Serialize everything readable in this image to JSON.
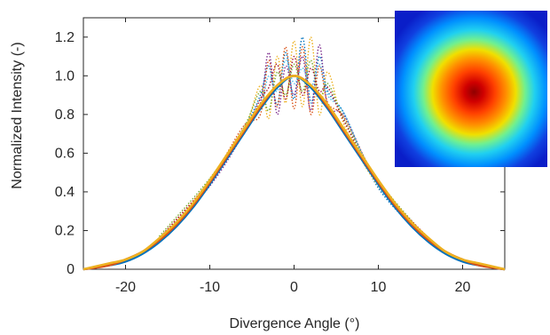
{
  "chart_data": {
    "type": "line",
    "xlabel": "Divergence Angle (°)",
    "ylabel": "Normalized Intensity (-)",
    "xlim": [
      -25,
      25
    ],
    "ylim": [
      0,
      1.3
    ],
    "xticks": [
      "-20",
      "-10",
      "0",
      "10",
      "20"
    ],
    "yticks": [
      "0",
      "0.2",
      "0.4",
      "0.6",
      "0.8",
      "1.0",
      "1.2"
    ],
    "grid": false,
    "legend": "none",
    "fit_curves": [
      {
        "style": "solid",
        "color": "#0072bd",
        "x": [
          -25,
          -22,
          -20,
          -18,
          -16,
          -14,
          -12,
          -10,
          -8,
          -6,
          -4,
          -2,
          0,
          2,
          4,
          6,
          8,
          10,
          12,
          14,
          16,
          18,
          20,
          22,
          25
        ],
        "values": [
          0.0,
          0.02,
          0.04,
          0.08,
          0.14,
          0.22,
          0.32,
          0.44,
          0.57,
          0.7,
          0.83,
          0.94,
          1.0,
          0.94,
          0.83,
          0.7,
          0.57,
          0.44,
          0.32,
          0.22,
          0.14,
          0.08,
          0.04,
          0.02,
          0.0
        ]
      },
      {
        "style": "solid",
        "color": "#d95319",
        "x": [
          -25,
          -22,
          -20,
          -18,
          -16,
          -14,
          -12,
          -10,
          -8,
          -6,
          -4,
          -2,
          0,
          2,
          4,
          6,
          8,
          10,
          12,
          14,
          16,
          18,
          20,
          22,
          25
        ],
        "values": [
          0.0,
          0.02,
          0.05,
          0.09,
          0.15,
          0.23,
          0.33,
          0.45,
          0.58,
          0.71,
          0.84,
          0.95,
          1.0,
          0.95,
          0.84,
          0.71,
          0.58,
          0.45,
          0.33,
          0.23,
          0.15,
          0.09,
          0.05,
          0.02,
          0.0
        ]
      },
      {
        "style": "solid",
        "color": "#edb120",
        "x": [
          -25,
          -22,
          -20,
          -18,
          -16,
          -14,
          -12,
          -10,
          -8,
          -6,
          -4,
          -2,
          0,
          2,
          4,
          6,
          8,
          10,
          12,
          14,
          16,
          18,
          20,
          22,
          25
        ],
        "values": [
          0.0,
          0.03,
          0.05,
          0.09,
          0.16,
          0.24,
          0.34,
          0.46,
          0.59,
          0.72,
          0.85,
          0.95,
          1.0,
          0.95,
          0.85,
          0.72,
          0.59,
          0.46,
          0.34,
          0.24,
          0.16,
          0.09,
          0.05,
          0.03,
          0.0
        ]
      }
    ],
    "measured_curves": [
      {
        "style": "dotted",
        "color": "#0072bd",
        "x": [
          -16,
          -10,
          -6,
          -4,
          -3,
          -2,
          -1,
          0,
          1,
          2,
          3,
          4,
          6,
          10,
          16
        ],
        "values": [
          0.15,
          0.44,
          0.72,
          0.9,
          1.05,
          0.85,
          1.12,
          0.88,
          1.2,
          0.86,
          1.1,
          0.92,
          0.8,
          0.42,
          0.14
        ]
      },
      {
        "style": "dotted",
        "color": "#d95319",
        "x": [
          -16,
          -10,
          -6,
          -4,
          -3,
          -2,
          -1,
          0,
          1,
          2,
          3,
          4,
          6,
          10,
          16
        ],
        "values": [
          0.16,
          0.46,
          0.74,
          0.8,
          1.08,
          0.84,
          1.15,
          0.83,
          1.15,
          0.8,
          1.05,
          0.86,
          0.78,
          0.45,
          0.15
        ]
      },
      {
        "style": "dotted",
        "color": "#edb120",
        "x": [
          -16,
          -10,
          -6,
          -4,
          -3,
          -2,
          -1,
          0,
          1,
          2,
          3,
          4,
          6,
          10,
          16
        ],
        "values": [
          0.14,
          0.45,
          0.71,
          0.95,
          0.78,
          1.1,
          0.86,
          1.18,
          0.84,
          1.2,
          0.8,
          1.02,
          0.74,
          0.43,
          0.16
        ]
      },
      {
        "style": "dotted",
        "color": "#7e2f8e",
        "x": [
          -16,
          -10,
          -6,
          -4,
          -3,
          -2,
          -1,
          0,
          1,
          2,
          3,
          4,
          6,
          10,
          16
        ],
        "values": [
          0.15,
          0.43,
          0.7,
          0.86,
          1.12,
          0.8,
          1.05,
          0.9,
          1.1,
          0.82,
          1.16,
          0.84,
          0.79,
          0.44,
          0.14
        ]
      },
      {
        "style": "dotted",
        "color": "#77ac30",
        "x": [
          -16,
          -10,
          -6,
          -4,
          -3,
          -2,
          -1,
          0,
          1,
          2,
          3,
          4,
          6,
          10,
          16
        ],
        "values": [
          0.17,
          0.47,
          0.73,
          0.92,
          0.82,
          1.02,
          0.9,
          1.06,
          0.92,
          1.08,
          0.88,
          0.96,
          0.77,
          0.46,
          0.15
        ]
      },
      {
        "style": "dotted",
        "color": "#4dbeee",
        "x": [
          -16,
          -10,
          -6,
          -4,
          -3,
          -2,
          -1,
          0,
          1,
          2,
          3,
          4,
          6,
          10,
          16
        ],
        "values": [
          0.15,
          0.44,
          0.72,
          0.84,
          1.0,
          0.92,
          1.08,
          0.96,
          1.04,
          0.94,
          1.06,
          0.9,
          0.8,
          0.43,
          0.15
        ]
      },
      {
        "style": "dotted",
        "color": "#a2142f",
        "x": [
          -16,
          -10,
          -6,
          -4,
          -3,
          -2,
          -1,
          0,
          1,
          2,
          3,
          4,
          6,
          10,
          16
        ],
        "values": [
          0.16,
          0.45,
          0.7,
          0.88,
          0.94,
          1.06,
          0.88,
          1.1,
          0.9,
          1.04,
          0.92,
          0.94,
          0.76,
          0.44,
          0.16
        ]
      }
    ],
    "inset": {
      "type": "heatmap",
      "description_colors": [
        "#0a1ec8",
        "#00a0ff",
        "#30e0d0",
        "#e0f000",
        "#ff8000",
        "#e00000",
        "#900000"
      ]
    }
  }
}
